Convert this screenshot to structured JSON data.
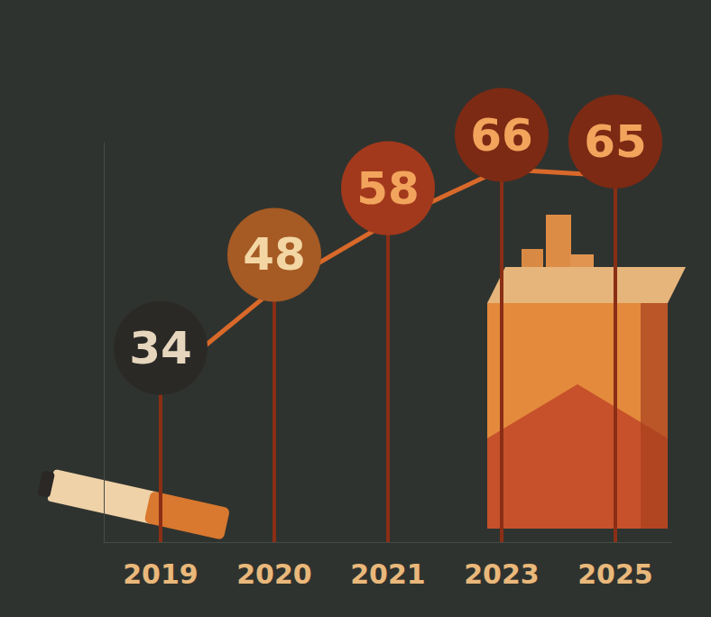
{
  "chart_data": {
    "type": "line",
    "categories": [
      "2019",
      "2020",
      "2021",
      "2023",
      "2025"
    ],
    "values": [
      34,
      48,
      58,
      66,
      65
    ],
    "color": "#d9692a",
    "colors": [
      "#2a2926",
      "#a65a24",
      "#a3391c",
      "#7c2a14",
      "#7c2a14"
    ],
    "ylim": [
      10,
      70
    ],
    "grid": false,
    "data_labels": true,
    "tick_labels": "x",
    "marker": "circle",
    "line_style": "solid"
  }
}
